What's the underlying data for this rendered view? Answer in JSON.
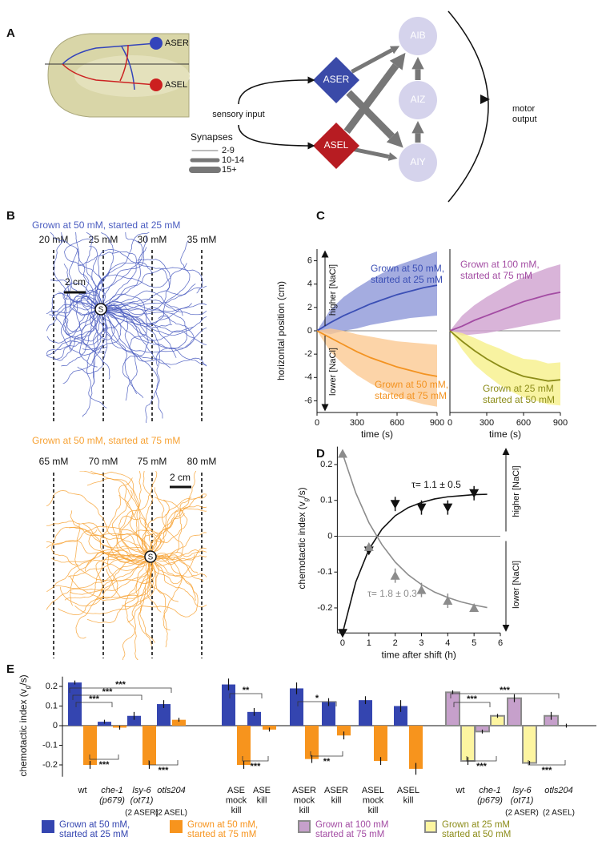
{
  "panel_a": {
    "label": "A",
    "worm": {
      "aser": "ASER",
      "asel": "ASEL"
    },
    "nodes": {
      "aser": "ASER",
      "asel": "ASEL",
      "aib": "AIB",
      "aiz": "AIZ",
      "aiy": "AIY"
    },
    "sensory_input": "sensory input",
    "motor_output": [
      "motor",
      "output"
    ],
    "synapses": {
      "title": "Synapses",
      "items": [
        "2-9",
        "10-14",
        "15+"
      ]
    }
  },
  "panel_b": {
    "label": "B",
    "plots": [
      {
        "title": "Grown at 50 mM, started at 25 mM",
        "color": "#4a5cc0",
        "lines": [
          "20 mM",
          "25 mM",
          "30 mM",
          "35 mM"
        ],
        "scale": "2 cm",
        "start": "S"
      },
      {
        "title": "Grown at 50 mM, started at 75 mM",
        "color": "#f7a234",
        "lines": [
          "65 mM",
          "70 mM",
          "75 mM",
          "80 mM"
        ],
        "scale": "2 cm",
        "start": "S"
      }
    ]
  },
  "chart_data": [
    {
      "type": "line",
      "panel_label": "C",
      "x": [
        0,
        100,
        200,
        300,
        400,
        500,
        600,
        700,
        800,
        900
      ],
      "xlim": [
        0,
        900
      ],
      "xticks": [
        0,
        300,
        600,
        900
      ],
      "ylim": [
        -7,
        7
      ],
      "yticks": [
        -6,
        -4,
        -2,
        0,
        2,
        4,
        6
      ],
      "xlabel": "time (s)",
      "ylabel": "horizontal position (cm)",
      "higher": "higher [NaCl]",
      "lower": "lower [NaCl]",
      "series": [
        {
          "label_lines": [
            "Grown at 50 mM,",
            "started at 25 mM"
          ],
          "color": "#3b4fb5",
          "band_color": "#8d97d8",
          "values": [
            0,
            0.7,
            1.3,
            1.8,
            2.3,
            2.7,
            3.1,
            3.4,
            3.7,
            3.9
          ],
          "upper": [
            0,
            1.8,
            2.9,
            3.7,
            4.4,
            5.0,
            5.6,
            6.0,
            6.4,
            6.8
          ],
          "lower": [
            0,
            -0.3,
            0,
            0.2,
            0.5,
            0.7,
            0.9,
            1.1,
            1.2,
            1.3
          ]
        },
        {
          "label_lines": [
            "Grown at 50 mM,",
            "started at 75 mM"
          ],
          "color": "#f39321",
          "band_color": "#fbc992",
          "values": [
            0,
            -0.6,
            -1.2,
            -1.8,
            -2.3,
            -2.7,
            -3.1,
            -3.4,
            -3.7,
            -3.9
          ],
          "upper": [
            0,
            0.2,
            0,
            -0.3,
            -0.5,
            -0.7,
            -0.9,
            -1.0,
            -1.1,
            -1.2
          ],
          "lower": [
            0,
            -1.8,
            -2.9,
            -3.8,
            -4.5,
            -5.1,
            -5.6,
            -6.0,
            -6.3,
            -6.5
          ]
        }
      ]
    },
    {
      "type": "line",
      "x": [
        0,
        100,
        200,
        300,
        400,
        500,
        600,
        700,
        800,
        900
      ],
      "xlim": [
        0,
        900
      ],
      "xticks": [
        0,
        300,
        600,
        900
      ],
      "ylim": [
        -7,
        7
      ],
      "xlabel": "time (s)",
      "series": [
        {
          "label_lines": [
            "Grown at 100 mM,",
            "started at 75 mM"
          ],
          "color": "#a34ca3",
          "band_color": "#cfa1d0",
          "values": [
            0,
            0.4,
            0.9,
            1.3,
            1.7,
            2.1,
            2.5,
            2.8,
            3.1,
            3.3
          ],
          "upper": [
            0,
            1.3,
            2.2,
            2.9,
            3.5,
            4.1,
            4.6,
            5.0,
            5.4,
            5.7
          ],
          "lower": [
            0,
            -0.4,
            -0.3,
            -0.2,
            0,
            0.2,
            0.4,
            0.6,
            0.8,
            1.0
          ]
        },
        {
          "label_lines": [
            "Grown at 25 mM",
            "started at 50 mM"
          ],
          "color": "#8c8c18",
          "band_color": "#f6f08a",
          "values": [
            0,
            -0.9,
            -1.7,
            -2.4,
            -3.0,
            -3.5,
            -3.9,
            -4.1,
            -4.3,
            -4.2
          ],
          "upper": [
            0,
            -0.2,
            -0.6,
            -1.1,
            -1.5,
            -2.0,
            -2.4,
            -2.5,
            -2.8,
            -2.7
          ],
          "lower": [
            0,
            -1.6,
            -2.9,
            -3.8,
            -4.6,
            -5.2,
            -5.7,
            -6.0,
            -6.3,
            -6.4
          ]
        }
      ]
    },
    {
      "type": "scatter",
      "panel_label": "D",
      "xlim": [
        -0.2,
        6
      ],
      "xticks": [
        0,
        1,
        2,
        3,
        4,
        5,
        6
      ],
      "ylim": [
        -0.27,
        0.25
      ],
      "yticks": [
        -0.2,
        -0.1,
        0,
        0.1,
        0.2
      ],
      "xlabel": "time after shift (h)",
      "ylabel": [
        "chemotactic index (v",
        "g",
        "/s)"
      ],
      "higher": "higher [NaCl]",
      "lower": "lower [NaCl]",
      "series": [
        {
          "marker": "down",
          "color": "#111111",
          "x": [
            0,
            1,
            2,
            3,
            4,
            5
          ],
          "values": [
            -0.27,
            -0.04,
            0.09,
            0.08,
            0.08,
            0.12
          ],
          "errors": [
            0.01,
            0.01,
            0.02,
            0.02,
            0.02,
            0.02
          ],
          "fit_x": [
            0,
            0.5,
            1,
            1.5,
            2,
            2.5,
            3,
            3.5,
            4,
            4.5,
            5,
            5.5
          ],
          "fit_values": [
            -0.27,
            -0.128,
            -0.037,
            0.02,
            0.057,
            0.08,
            0.094,
            0.104,
            0.11,
            0.113,
            0.116,
            0.117
          ],
          "annotation": "τ= 1.1 ± 0.5"
        },
        {
          "marker": "up",
          "color": "#8c8c8c",
          "x": [
            0,
            1,
            2,
            3,
            4,
            5
          ],
          "values": [
            0.23,
            -0.03,
            -0.11,
            -0.15,
            -0.18,
            -0.2
          ],
          "errors": [
            0.01,
            0.01,
            0.02,
            0.02,
            0.02,
            0.01
          ],
          "fit_x": [
            0,
            0.5,
            1,
            1.5,
            2,
            2.5,
            3,
            3.5,
            4,
            4.5,
            5,
            5.5
          ],
          "fit_values": [
            0.23,
            0.121,
            0.038,
            -0.024,
            -0.072,
            -0.108,
            -0.135,
            -0.156,
            -0.171,
            -0.183,
            -0.192,
            -0.199
          ],
          "annotation": "τ= 1.8 ± 0.3"
        }
      ]
    },
    {
      "type": "bar",
      "panel_label": "E",
      "categories": [
        {
          "lines": [
            "wt"
          ]
        },
        {
          "lines": [
            "che-1",
            "(p679)"
          ],
          "italic": true
        },
        {
          "lines": [
            "lsy-6",
            "(ot71)"
          ],
          "italic": true,
          "note": "(2 ASER)"
        },
        {
          "lines": [
            "otls204"
          ],
          "italic": true,
          "note": "(2 ASEL)"
        },
        {
          "lines": [
            "ASE",
            "mock",
            "kill"
          ]
        },
        {
          "lines": [
            "ASE",
            "kill"
          ]
        },
        {
          "lines": [
            "ASER",
            "mock",
            "kill"
          ]
        },
        {
          "lines": [
            "ASER",
            "kill"
          ]
        },
        {
          "lines": [
            "ASEL",
            "mock",
            "kill"
          ]
        },
        {
          "lines": [
            "ASEL",
            "kill"
          ]
        },
        {
          "lines": [
            "wt"
          ]
        },
        {
          "lines": [
            "che-1",
            "(p679)"
          ],
          "italic": true
        },
        {
          "lines": [
            "lsy-6",
            "(ot71)"
          ],
          "italic": true,
          "note": "(2 ASER)"
        },
        {
          "lines": [
            "otls204"
          ],
          "italic": true,
          "note": "(2 ASEL)"
        }
      ],
      "ylim": [
        -0.26,
        0.25
      ],
      "yticks": [
        -0.2,
        -0.1,
        0,
        0.1,
        0.2
      ],
      "ylabel": [
        "chemotactic index (v",
        "g",
        "/s)"
      ],
      "series": [
        {
          "name": "Grown at 50 mM, started at 25 mM",
          "color": "#3445b0",
          "values": [
            0.22,
            0.02,
            0.05,
            0.11,
            0.21,
            0.07,
            0.19,
            0.12,
            0.13,
            0.1,
            null,
            null,
            null,
            null
          ],
          "errors": [
            0.01,
            0.01,
            0.02,
            0.02,
            0.03,
            0.02,
            0.03,
            0.02,
            0.02,
            0.03,
            null,
            null,
            null,
            null
          ]
        },
        {
          "name": "Grown at 50 mM, started at 75 mM",
          "color": "#f7941d",
          "values": [
            -0.2,
            -0.01,
            -0.2,
            0.03,
            -0.2,
            -0.02,
            -0.17,
            -0.05,
            -0.18,
            -0.22,
            null,
            null,
            null,
            null
          ],
          "errors": [
            0.02,
            0.01,
            0.02,
            0.01,
            0.02,
            0.01,
            0.02,
            0.02,
            0.02,
            0.03,
            null,
            null,
            null,
            null
          ]
        },
        {
          "name": "Grown at 100 mM started at 75 mM",
          "color": "#c6a0cb",
          "edge": "#8a8a8a",
          "values": [
            null,
            null,
            null,
            null,
            null,
            null,
            null,
            null,
            null,
            null,
            0.17,
            -0.03,
            0.14,
            0.05
          ],
          "errors": [
            null,
            null,
            null,
            null,
            null,
            null,
            null,
            null,
            null,
            null,
            0.01,
            0.01,
            0.02,
            0.02
          ]
        },
        {
          "name": "Grown at 25 mM started at 50 mM",
          "color": "#fdf5a0",
          "edge": "#8a8a8a",
          "values": [
            null,
            null,
            null,
            null,
            null,
            null,
            null,
            null,
            null,
            null,
            -0.18,
            0.05,
            -0.19,
            0
          ],
          "errors": [
            null,
            null,
            null,
            null,
            null,
            null,
            null,
            null,
            null,
            null,
            0.02,
            0.01,
            0.01,
            0.01
          ]
        }
      ],
      "significance": [
        "***",
        "***",
        "***",
        "***",
        "***",
        "**",
        "***",
        "*",
        "**",
        "***",
        "***",
        "***",
        "***"
      ]
    }
  ]
}
